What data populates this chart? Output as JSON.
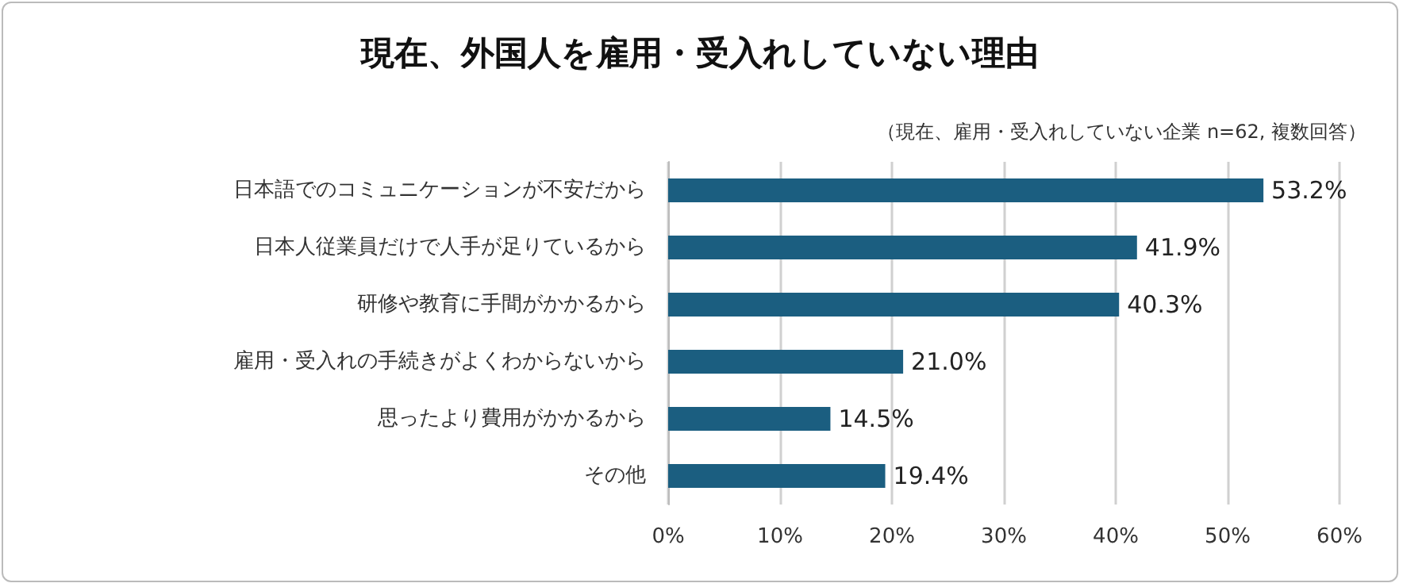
{
  "chart_data": {
    "type": "bar",
    "orientation": "horizontal",
    "title": "現在、外国人を雇用・受入れしていない理由",
    "subtitle": "（現在、雇用・受入れしていない企業 n=62, 複数回答）",
    "categories": [
      "日本語でのコミュニケーションが不安だから",
      "日本人従業員だけで人手が足りているから",
      "研修や教育に手間がかかるから",
      "雇用・受入れの手続きがよくわからないから",
      "思ったより費用がかかるから",
      "その他"
    ],
    "values": [
      53.2,
      41.9,
      40.3,
      21.0,
      14.5,
      19.4
    ],
    "value_labels": [
      "53.2%",
      "41.9%",
      "40.3%",
      "21.0%",
      "14.5%",
      "19.4%"
    ],
    "color": "#1b5e80",
    "xlim": [
      0,
      60
    ],
    "xticks": [
      {
        "value": 0,
        "label": "0%"
      },
      {
        "value": 10,
        "label": "10%"
      },
      {
        "value": 20,
        "label": "20%"
      },
      {
        "value": 30,
        "label": "30%"
      },
      {
        "value": 40,
        "label": "40%"
      },
      {
        "value": 50,
        "label": "50%"
      },
      {
        "value": 60,
        "label": "60%"
      }
    ],
    "grid": "x"
  }
}
